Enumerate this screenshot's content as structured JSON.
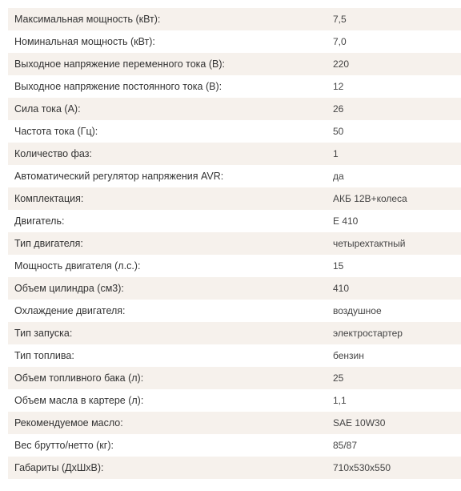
{
  "specs": [
    {
      "label": "Максимальная мощность (кВт):",
      "value": "7,5"
    },
    {
      "label": "Номинальная мощность (кВт):",
      "value": "7,0"
    },
    {
      "label": "Выходное напряжение переменного тока (В):",
      "value": "220"
    },
    {
      "label": "Выходное напряжение постоянного тока (В):",
      "value": "12"
    },
    {
      "label": "Сила тока (А):",
      "value": "26"
    },
    {
      "label": "Частота тока (Гц):",
      "value": "50"
    },
    {
      "label": "Количество фаз:",
      "value": "1"
    },
    {
      "label": "Автоматический регулятор напряжения AVR:",
      "value": "да"
    },
    {
      "label": "Комплектация:",
      "value": "АКБ 12В+колеса"
    },
    {
      "label": "Двигатель:",
      "value": "E 410"
    },
    {
      "label": "Тип двигателя:",
      "value": "четырехтактный"
    },
    {
      "label": "Мощность двигателя (л.с.):",
      "value": "15"
    },
    {
      "label": "Объем цилиндра (см3):",
      "value": "410"
    },
    {
      "label": "Охлаждение двигателя:",
      "value": "воздушное"
    },
    {
      "label": "Тип запуска:",
      "value": "электростартер"
    },
    {
      "label": "Тип топлива:",
      "value": "бензин"
    },
    {
      "label": "Объем топливного бака (л):",
      "value": "25"
    },
    {
      "label": "Объем масла в картере (л):",
      "value": "1,1"
    },
    {
      "label": "Рекомендуемое масло:",
      "value": "SAE 10W30"
    },
    {
      "label": "Вес брутто/нетто (кг):",
      "value": "85/87"
    },
    {
      "label": "Габариты (ДхШхВ):",
      "value": "710х530х550"
    }
  ],
  "colors": {
    "row_stripe": "#f6f1ec",
    "row_plain": "#ffffff",
    "text": "#333333"
  }
}
